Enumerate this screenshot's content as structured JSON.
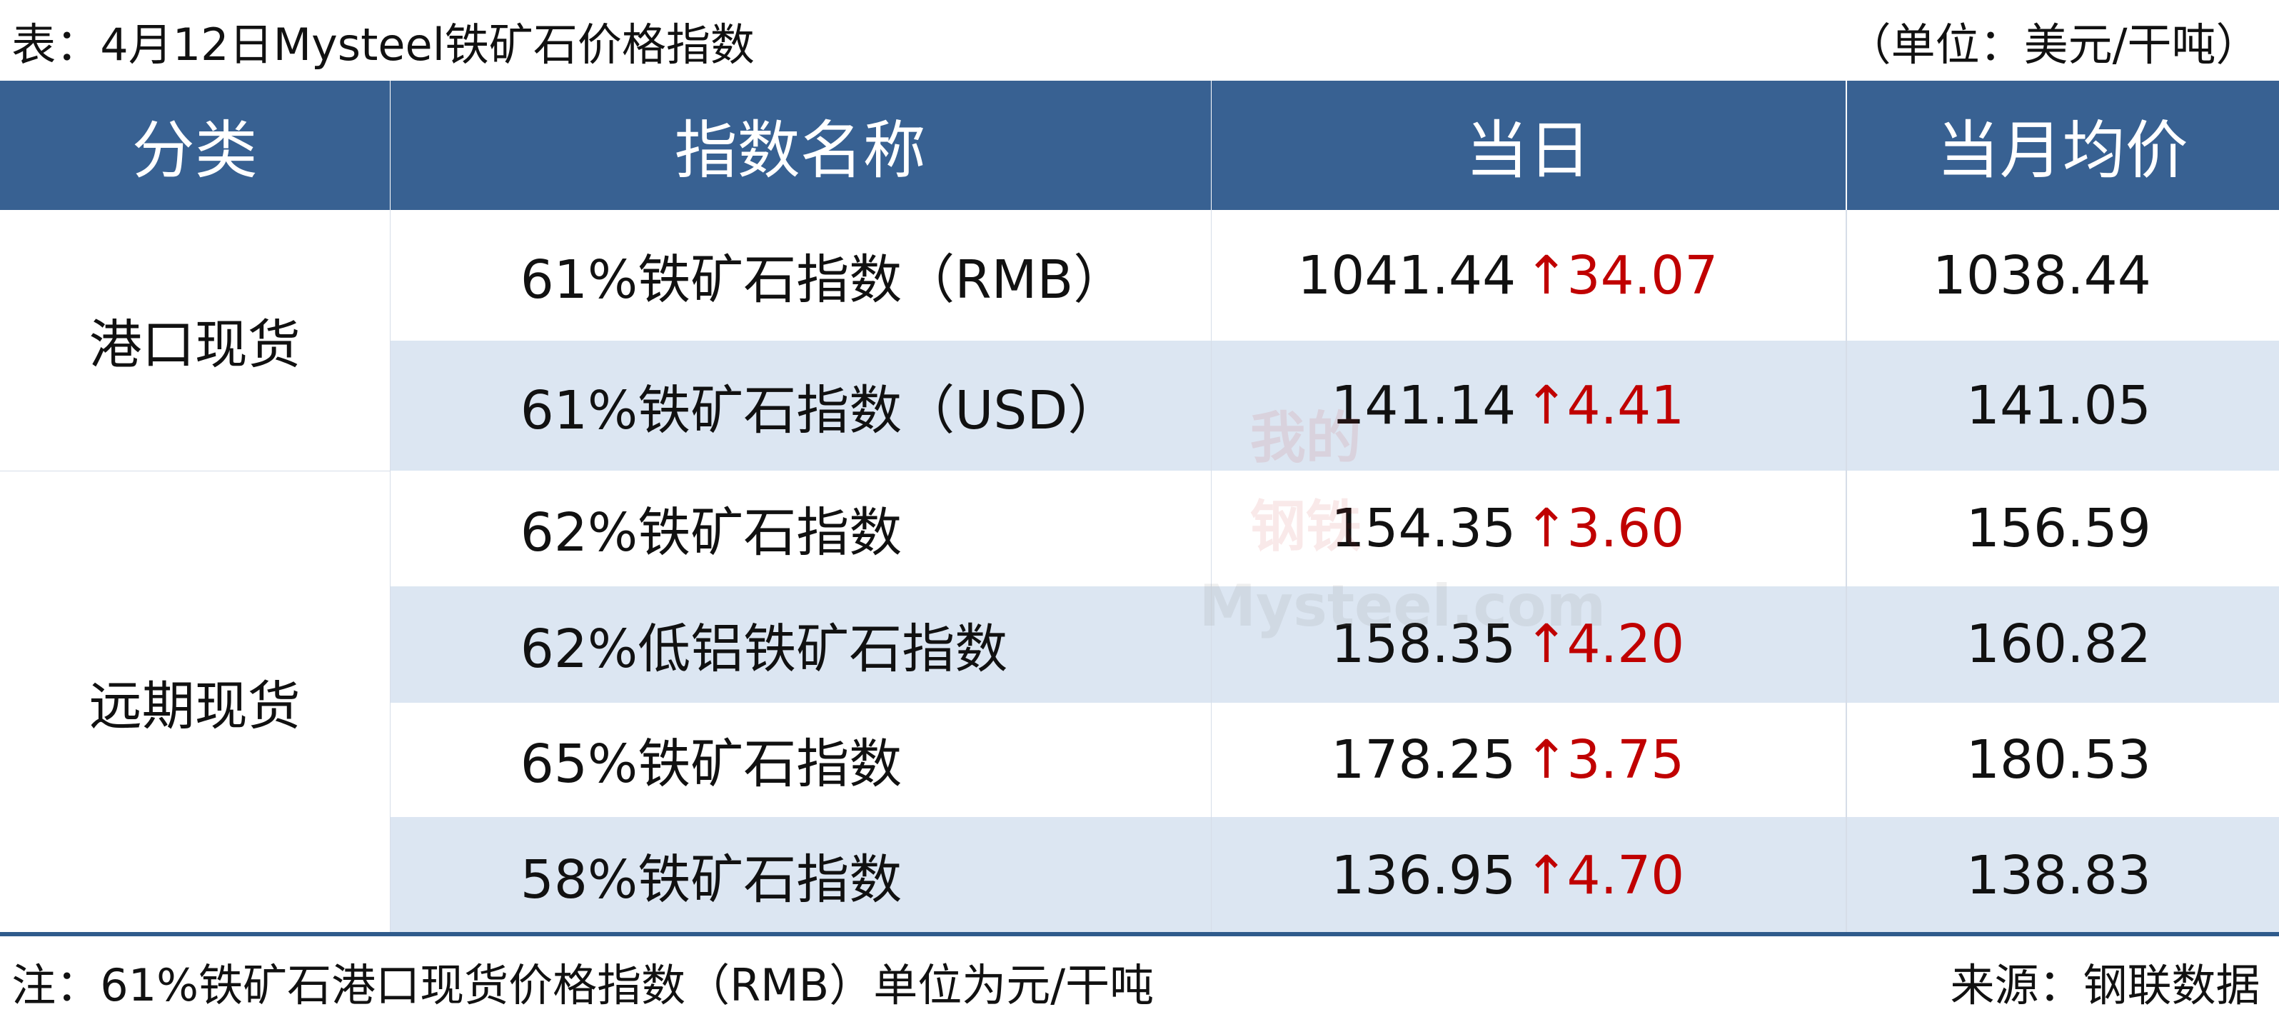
{
  "header": {
    "title": "表：4月12日Mysteel铁矿石价格指数",
    "unit": "（单位：美元/干吨）"
  },
  "table": {
    "columns": [
      "分类",
      "指数名称",
      "当日",
      "当月均价"
    ],
    "groups": [
      {
        "label": "港口现货",
        "rows": [
          {
            "name": "61%铁矿石指数（RMB）",
            "today": "1041.44",
            "direction": "↑",
            "change": "34.07",
            "month_avg": "1038.44"
          },
          {
            "name": "61%铁矿石指数（USD）",
            "today": "141.14",
            "direction": "↑",
            "change": "4.41",
            "month_avg": "141.05"
          }
        ]
      },
      {
        "label": "远期现货",
        "rows": [
          {
            "name": "62%铁矿石指数",
            "today": "154.35",
            "direction": "↑",
            "change": "3.60",
            "month_avg": "156.59"
          },
          {
            "name": "62%低铝铁矿石指数",
            "today": "158.35",
            "direction": "↑",
            "change": "4.20",
            "month_avg": "160.82"
          },
          {
            "name": "65%铁矿石指数",
            "today": "178.25",
            "direction": "↑",
            "change": "3.75",
            "month_avg": "180.53"
          },
          {
            "name": "58%铁矿石指数",
            "today": "136.95",
            "direction": "↑",
            "change": "4.70",
            "month_avg": "138.83"
          }
        ]
      }
    ]
  },
  "watermark": {
    "line1": "我的",
    "line2": "钢铁",
    "line3": "Mysteel.com"
  },
  "footer": {
    "note": "注：61%铁矿石港口现货价格指数（RMB）单位为元/干吨",
    "source": "来源：钢联数据"
  }
}
